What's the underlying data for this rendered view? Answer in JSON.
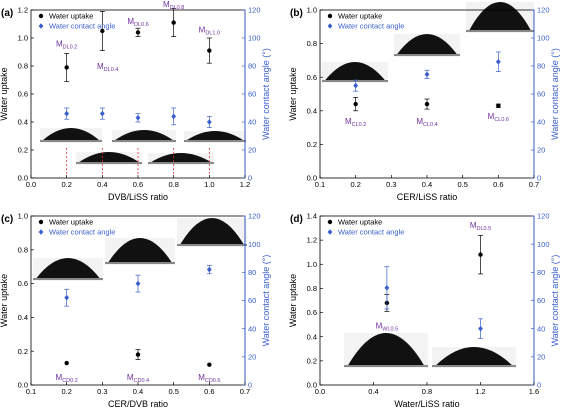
{
  "colors": {
    "black_series": "#000000",
    "blue_series": "#3a5fcd",
    "right_axis": "#3a5fcd",
    "annotation": "#7030a0",
    "guide": "#e03030"
  },
  "chart_data": [
    {
      "type": "scatter",
      "panel_label": "(a)",
      "xlabel": "DVB/LiSS ratio",
      "ylabel": "Water uptake",
      "y2label": "Water contact angle (°)",
      "xlim": [
        0.0,
        1.2
      ],
      "xticks": [
        "0.0",
        "0.2",
        "0.4",
        "0.6",
        "0.8",
        "1.0",
        "1.2"
      ],
      "ylim": [
        0.0,
        1.2
      ],
      "yticks": [
        "0.0",
        "0.2",
        "0.4",
        "0.6",
        "0.8",
        "1.0",
        "1.2"
      ],
      "y2lim": [
        0,
        120
      ],
      "y2ticks": [
        "0",
        "20",
        "40",
        "60",
        "80",
        "100",
        "120"
      ],
      "legend": [
        "Water uptake",
        "Water contact angle"
      ],
      "series": [
        {
          "name": "Water uptake",
          "axis": "left",
          "marker": "circle",
          "x": [
            0.2,
            0.4,
            0.6,
            0.8,
            1.0
          ],
          "y": [
            0.79,
            1.05,
            1.04,
            1.11,
            0.91
          ],
          "err": [
            0.1,
            0.14,
            0.03,
            0.1,
            0.09
          ]
        },
        {
          "name": "Water contact angle",
          "axis": "right",
          "marker": "diamond",
          "x": [
            0.2,
            0.4,
            0.6,
            0.8,
            1.0
          ],
          "y": [
            46,
            46,
            43,
            44,
            40
          ],
          "err": [
            4,
            4,
            3,
            6,
            4
          ]
        }
      ],
      "annotations": [
        {
          "main": "M",
          "sub": "DL0.2",
          "x": 0.2,
          "y": 0.94
        },
        {
          "main": "M",
          "sub": "DL0.4",
          "x": 0.43,
          "y": 0.78
        },
        {
          "main": "M",
          "sub": "DL0.6",
          "x": 0.6,
          "y": 1.1
        },
        {
          "main": "M",
          "sub": "DL0.8",
          "x": 0.8,
          "y": 1.22
        },
        {
          "main": "M",
          "sub": "DL1.0",
          "x": 1.0,
          "y": 1.04
        }
      ]
    },
    {
      "type": "scatter",
      "panel_label": "(b)",
      "xlabel": "CER/LiSS ratio",
      "ylabel": "Water uptake",
      "y2label": "Water contact angle (°)",
      "xlim": [
        0.1,
        0.7
      ],
      "xticks": [
        "0.1",
        "0.2",
        "0.3",
        "0.4",
        "0.5",
        "0.6",
        "0.7"
      ],
      "ylim": [
        0.0,
        1.0
      ],
      "yticks": [
        "0.0",
        "0.2",
        "0.4",
        "0.6",
        "0.8",
        "1.0"
      ],
      "y2lim": [
        0,
        120
      ],
      "y2ticks": [
        "0",
        "20",
        "40",
        "60",
        "80",
        "100",
        "120"
      ],
      "legend": [
        "Water uptake",
        "Water contact angle"
      ],
      "series": [
        {
          "name": "Water uptake",
          "axis": "left",
          "marker": "circle",
          "x": [
            0.2,
            0.4,
            0.6
          ],
          "y": [
            0.44,
            0.44,
            0.43
          ],
          "err": [
            0.04,
            0.03,
            0.01
          ]
        },
        {
          "name": "Water contact angle",
          "axis": "right",
          "marker": "diamond",
          "x": [
            0.2,
            0.4,
            0.6
          ],
          "y": [
            66,
            74,
            83
          ],
          "err": [
            4,
            3,
            7
          ]
        }
      ],
      "annotations": [
        {
          "main": "M",
          "sub": "CL0.2",
          "x": 0.2,
          "y": 0.32
        },
        {
          "main": "M",
          "sub": "CL0.4",
          "x": 0.4,
          "y": 0.32
        },
        {
          "main": "M",
          "sub": "CL0.6",
          "x": 0.6,
          "y": 0.35
        }
      ]
    },
    {
      "type": "scatter",
      "panel_label": "(c)",
      "xlabel": "CER/DVB ratio",
      "ylabel": "Water uptake",
      "y2label": "Water contact angle (°)",
      "xlim": [
        0.1,
        0.7
      ],
      "xticks": [
        "0.1",
        "0.2",
        "0.3",
        "0.4",
        "0.5",
        "0.6",
        "0.7"
      ],
      "ylim": [
        0.0,
        1.0
      ],
      "yticks": [
        "0.0",
        "0.2",
        "0.4",
        "0.6",
        "0.8",
        "1.0"
      ],
      "y2lim": [
        0,
        120
      ],
      "y2ticks": [
        "0",
        "20",
        "40",
        "60",
        "80",
        "100",
        "120"
      ],
      "legend": [
        "Water uptake",
        "Water contact angle"
      ],
      "series": [
        {
          "name": "Water uptake",
          "axis": "left",
          "marker": "circle",
          "x": [
            0.2,
            0.4,
            0.6
          ],
          "y": [
            0.13,
            0.18,
            0.12
          ],
          "err": [
            0.0,
            0.03,
            0.0
          ]
        },
        {
          "name": "Water contact angle",
          "axis": "right",
          "marker": "diamond",
          "x": [
            0.2,
            0.4,
            0.6
          ],
          "y": [
            62,
            72,
            82
          ],
          "err": [
            6,
            6,
            3
          ]
        }
      ],
      "annotations": [
        {
          "main": "M",
          "sub": "CD0.2",
          "x": 0.2,
          "y": 0.03
        },
        {
          "main": "M",
          "sub": "CD0.4",
          "x": 0.4,
          "y": 0.03
        },
        {
          "main": "M",
          "sub": "CD0.6",
          "x": 0.6,
          "y": 0.03
        }
      ]
    },
    {
      "type": "scatter",
      "panel_label": "(d)",
      "xlabel": "Water/LiSS ratio",
      "ylabel": "Water uptake",
      "y2label": "Water contact angle (°)",
      "xlim": [
        0.0,
        1.6
      ],
      "xticks": [
        "0.0",
        "0.4",
        "0.8",
        "1.2",
        "1.6"
      ],
      "ylim": [
        0.0,
        1.4
      ],
      "yticks": [
        "0.0",
        "0.2",
        "0.4",
        "0.6",
        "0.8",
        "1.0",
        "1.2",
        "1.4"
      ],
      "y2lim": [
        0,
        120
      ],
      "y2ticks": [
        "0",
        "20",
        "40",
        "60",
        "80",
        "100",
        "120"
      ],
      "legend": [
        "Water uptake",
        "Water contact angle"
      ],
      "series": [
        {
          "name": "Water uptake",
          "axis": "left",
          "marker": "circle",
          "x": [
            0.5,
            1.2
          ],
          "y": [
            0.68,
            1.08
          ],
          "err": [
            0.07,
            0.16
          ]
        },
        {
          "name": "Water contact angle",
          "axis": "right",
          "marker": "diamond",
          "x": [
            0.5,
            1.2
          ],
          "y": [
            69,
            40
          ],
          "err": [
            15,
            7
          ]
        }
      ],
      "annotations": [
        {
          "main": "M",
          "sub": "WL0.5",
          "x": 0.5,
          "y": 0.47
        },
        {
          "main": "M",
          "sub": "DL0.5",
          "x": 1.2,
          "y": 1.3
        }
      ]
    }
  ]
}
